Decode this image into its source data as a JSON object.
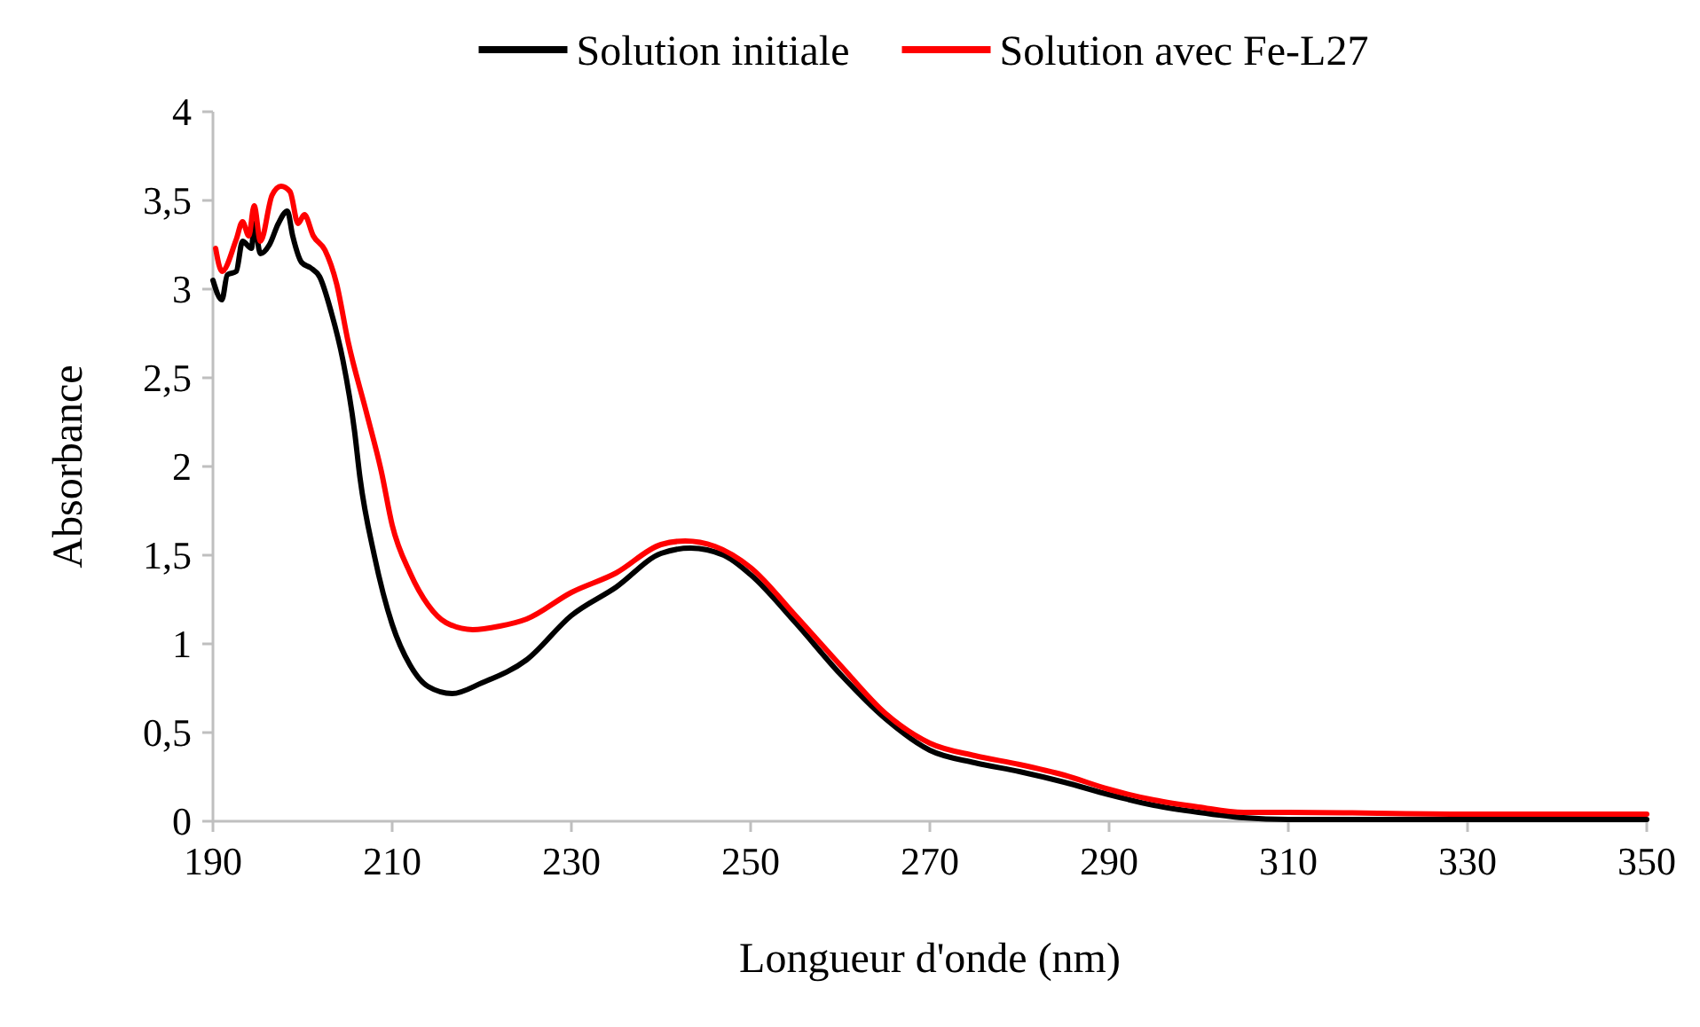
{
  "chart_data": {
    "type": "line",
    "xlabel": "Longueur d'onde (nm)",
    "ylabel": "Absorbance",
    "xlim": [
      190,
      350
    ],
    "xticks": [
      190,
      210,
      230,
      250,
      270,
      290,
      310,
      330,
      350
    ],
    "ylim": [
      0,
      4
    ],
    "yticks": [
      0,
      {
        "value": 0.5,
        "label": "0,5"
      },
      1,
      {
        "value": 1.5,
        "label": "1,5"
      },
      2,
      {
        "value": 2.5,
        "label": "2,5"
      },
      3,
      {
        "value": 3.5,
        "label": "3,5"
      },
      4
    ],
    "grid": false,
    "legend": "top",
    "line_style": "solid",
    "marker": "none",
    "series": [
      {
        "name": "Solution initiale",
        "color": "#000000",
        "x": [
          190,
          191,
          191.6,
          192.6,
          193.3,
          194.3,
          194.6,
          195.3,
          196.3,
          197.3,
          198.3,
          198.9,
          199.9,
          200.9,
          201.9,
          203.2,
          204.5,
          205.8,
          206.4,
          208,
          210,
          212,
          214,
          216.7,
          220,
          225,
          230,
          235,
          240,
          243.3,
          247,
          250,
          255,
          260,
          265,
          270,
          275,
          280,
          285,
          290,
          295,
          300,
          305,
          310,
          330,
          350
        ],
        "values": [
          3.05,
          2.94,
          3.08,
          3.1,
          3.27,
          3.23,
          3.37,
          3.2,
          3.25,
          3.37,
          3.44,
          3.3,
          3.15,
          3.12,
          3.07,
          2.87,
          2.6,
          2.2,
          1.94,
          1.5,
          1.11,
          0.88,
          0.76,
          0.72,
          0.78,
          0.91,
          1.16,
          1.32,
          1.51,
          1.54,
          1.5,
          1.39,
          1.12,
          0.83,
          0.58,
          0.4,
          0.33,
          0.28,
          0.22,
          0.15,
          0.09,
          0.05,
          0.02,
          0.01,
          0.01,
          0.01
        ]
      },
      {
        "name": "Solution avec Fe-L27",
        "color": "#ff0000",
        "x": [
          190.3,
          191,
          192.6,
          193.3,
          194,
          194.6,
          195.3,
          196.6,
          197.6,
          198.6,
          199.5,
          200.2,
          201.2,
          202.5,
          203.8,
          205.1,
          207.1,
          208.8,
          210,
          212,
          214,
          216,
          219,
          222,
          225,
          230,
          235,
          240,
          242.7,
          246,
          250,
          255,
          260,
          265,
          270,
          275,
          280,
          285,
          290,
          295,
          300,
          305,
          310,
          330,
          350
        ],
        "values": [
          3.23,
          3.1,
          3.28,
          3.38,
          3.3,
          3.47,
          3.27,
          3.53,
          3.58,
          3.55,
          3.37,
          3.42,
          3.3,
          3.22,
          3.03,
          2.7,
          2.31,
          1.97,
          1.67,
          1.4,
          1.22,
          1.12,
          1.08,
          1.1,
          1.14,
          1.29,
          1.4,
          1.56,
          1.58,
          1.55,
          1.43,
          1.16,
          0.88,
          0.61,
          0.44,
          0.37,
          0.32,
          0.26,
          0.18,
          0.12,
          0.08,
          0.05,
          0.05,
          0.04,
          0.04
        ]
      }
    ]
  }
}
